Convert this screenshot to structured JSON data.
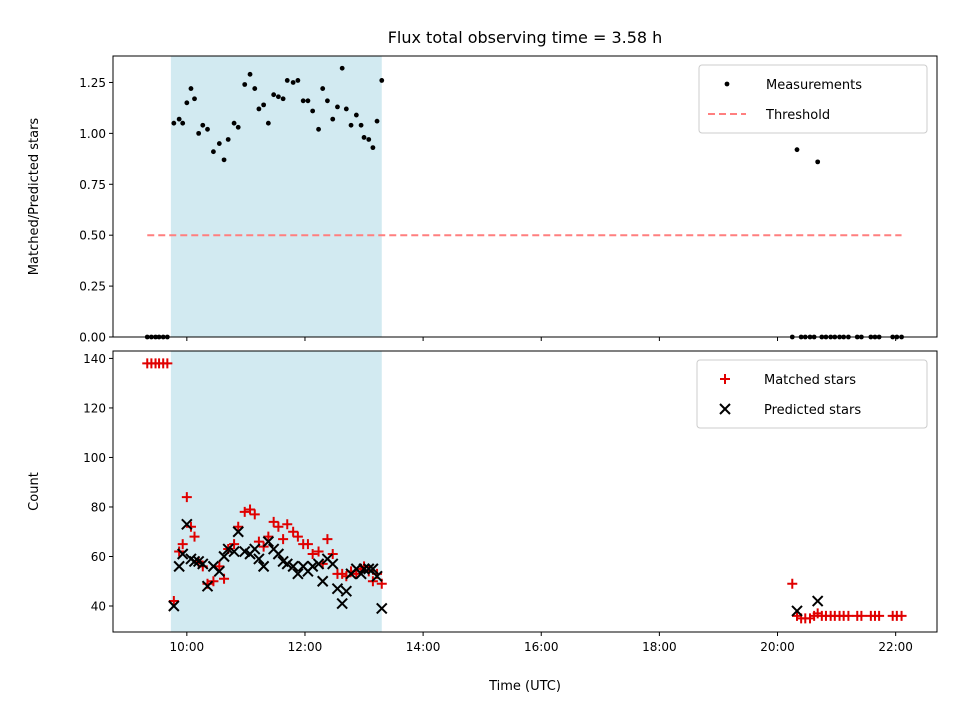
{
  "title": "Flux total observing time = 3.58 h",
  "colors": {
    "measurements": "#000000",
    "threshold": "#ff7f7f",
    "matched": "#e00000",
    "predicted": "#000000",
    "shade": "#add8e6"
  },
  "chart_data": [
    {
      "type": "scatter",
      "ylabel": "Matched/Predicted stars",
      "xlim": [
        8.75,
        22.7
      ],
      "ylim": [
        0,
        1.38
      ],
      "xticks": [
        10,
        12,
        14,
        16,
        18,
        20,
        22
      ],
      "yticks": [
        0.0,
        0.25,
        0.5,
        0.75,
        1.0,
        1.25
      ],
      "ytick_labels": [
        "0.00",
        "0.25",
        "0.50",
        "0.75",
        "1.00",
        "1.25"
      ],
      "shaded_x": [
        9.73,
        13.3
      ],
      "legend": {
        "placement": "top-right",
        "entries": [
          "Measurements",
          "Threshold"
        ]
      },
      "threshold": {
        "name": "Threshold",
        "y": 0.5,
        "x": [
          9.33,
          22.1
        ]
      },
      "series": [
        {
          "name": "Measurements",
          "points": [
            [
              9.33,
              0
            ],
            [
              9.4,
              0
            ],
            [
              9.47,
              0
            ],
            [
              9.53,
              0
            ],
            [
              9.6,
              0
            ],
            [
              9.67,
              0
            ],
            [
              9.78,
              1.05
            ],
            [
              9.87,
              1.07
            ],
            [
              9.93,
              1.05
            ],
            [
              10.0,
              1.15
            ],
            [
              10.07,
              1.22
            ],
            [
              10.13,
              1.17
            ],
            [
              10.2,
              1.0
            ],
            [
              10.27,
              1.04
            ],
            [
              10.35,
              1.02
            ],
            [
              10.45,
              0.91
            ],
            [
              10.55,
              0.95
            ],
            [
              10.63,
              0.87
            ],
            [
              10.7,
              0.97
            ],
            [
              10.8,
              1.05
            ],
            [
              10.87,
              1.03
            ],
            [
              10.98,
              1.24
            ],
            [
              11.07,
              1.29
            ],
            [
              11.15,
              1.22
            ],
            [
              11.22,
              1.12
            ],
            [
              11.3,
              1.14
            ],
            [
              11.38,
              1.05
            ],
            [
              11.47,
              1.19
            ],
            [
              11.55,
              1.18
            ],
            [
              11.63,
              1.17
            ],
            [
              11.7,
              1.26
            ],
            [
              11.8,
              1.25
            ],
            [
              11.88,
              1.26
            ],
            [
              11.97,
              1.16
            ],
            [
              12.05,
              1.16
            ],
            [
              12.13,
              1.11
            ],
            [
              12.23,
              1.02
            ],
            [
              12.3,
              1.22
            ],
            [
              12.38,
              1.16
            ],
            [
              12.47,
              1.07
            ],
            [
              12.55,
              1.13
            ],
            [
              12.63,
              1.32
            ],
            [
              12.7,
              1.12
            ],
            [
              12.78,
              1.04
            ],
            [
              12.87,
              1.09
            ],
            [
              12.95,
              1.04
            ],
            [
              13.0,
              0.98
            ],
            [
              13.08,
              0.97
            ],
            [
              13.15,
              0.93
            ],
            [
              13.22,
              1.06
            ],
            [
              13.3,
              1.26
            ],
            [
              20.25,
              0
            ],
            [
              20.33,
              0.92
            ],
            [
              20.4,
              0
            ],
            [
              20.47,
              0
            ],
            [
              20.55,
              0
            ],
            [
              20.62,
              0
            ],
            [
              20.68,
              0.86
            ],
            [
              20.75,
              0
            ],
            [
              20.82,
              0
            ],
            [
              20.9,
              0
            ],
            [
              20.97,
              0
            ],
            [
              21.05,
              0
            ],
            [
              21.12,
              0
            ],
            [
              21.2,
              0
            ],
            [
              21.35,
              0
            ],
            [
              21.42,
              0
            ],
            [
              21.58,
              0
            ],
            [
              21.65,
              0
            ],
            [
              21.72,
              0
            ],
            [
              21.95,
              0
            ],
            [
              22.02,
              0
            ],
            [
              22.1,
              0
            ]
          ]
        }
      ]
    },
    {
      "type": "scatter",
      "ylabel": "Count",
      "xlabel": "Time (UTC)",
      "xlim": [
        8.75,
        22.7
      ],
      "ylim": [
        29.5,
        143
      ],
      "xticks": [
        10,
        12,
        14,
        16,
        18,
        20,
        22
      ],
      "xtick_labels": [
        "10:00",
        "12:00",
        "14:00",
        "16:00",
        "18:00",
        "20:00",
        "22:00"
      ],
      "yticks": [
        40,
        60,
        80,
        100,
        120,
        140
      ],
      "ytick_labels": [
        "40",
        "60",
        "80",
        "100",
        "120",
        "140"
      ],
      "shaded_x": [
        9.73,
        13.3
      ],
      "legend": {
        "placement": "top-right",
        "entries": [
          "Matched stars",
          "Predicted stars"
        ]
      },
      "series": [
        {
          "name": "Matched stars",
          "marker": "plus",
          "points": [
            [
              9.33,
              138
            ],
            [
              9.4,
              138
            ],
            [
              9.47,
              138
            ],
            [
              9.53,
              138
            ],
            [
              9.6,
              138
            ],
            [
              9.67,
              138
            ],
            [
              9.78,
              42
            ],
            [
              9.87,
              62
            ],
            [
              9.93,
              65
            ],
            [
              10.0,
              84
            ],
            [
              10.07,
              72
            ],
            [
              10.13,
              68
            ],
            [
              10.2,
              58
            ],
            [
              10.27,
              56
            ],
            [
              10.35,
              49
            ],
            [
              10.45,
              50
            ],
            [
              10.55,
              56
            ],
            [
              10.63,
              51
            ],
            [
              10.7,
              63
            ],
            [
              10.8,
              65
            ],
            [
              10.87,
              72
            ],
            [
              10.98,
              78
            ],
            [
              11.07,
              79
            ],
            [
              11.15,
              77
            ],
            [
              11.22,
              66
            ],
            [
              11.3,
              64
            ],
            [
              11.38,
              68
            ],
            [
              11.47,
              74
            ],
            [
              11.55,
              72
            ],
            [
              11.63,
              67
            ],
            [
              11.7,
              73
            ],
            [
              11.8,
              70
            ],
            [
              11.88,
              68
            ],
            [
              11.97,
              65
            ],
            [
              12.05,
              65
            ],
            [
              12.13,
              61
            ],
            [
              12.23,
              62
            ],
            [
              12.3,
              57
            ],
            [
              12.38,
              67
            ],
            [
              12.47,
              61
            ],
            [
              12.55,
              53
            ],
            [
              12.63,
              53
            ],
            [
              12.7,
              52
            ],
            [
              12.78,
              54
            ],
            [
              12.87,
              53
            ],
            [
              12.95,
              55
            ],
            [
              13.0,
              56
            ],
            [
              13.08,
              54
            ],
            [
              13.15,
              50
            ],
            [
              13.22,
              53
            ],
            [
              13.3,
              49
            ],
            [
              20.25,
              49
            ],
            [
              20.33,
              36
            ],
            [
              20.4,
              35
            ],
            [
              20.47,
              35
            ],
            [
              20.55,
              35
            ],
            [
              20.62,
              36
            ],
            [
              20.68,
              37
            ],
            [
              20.75,
              36
            ],
            [
              20.82,
              36
            ],
            [
              20.9,
              36
            ],
            [
              20.97,
              36
            ],
            [
              21.05,
              36
            ],
            [
              21.12,
              36
            ],
            [
              21.2,
              36
            ],
            [
              21.35,
              36
            ],
            [
              21.42,
              36
            ],
            [
              21.58,
              36
            ],
            [
              21.65,
              36
            ],
            [
              21.72,
              36
            ],
            [
              21.95,
              36
            ],
            [
              22.02,
              36
            ],
            [
              22.1,
              36
            ]
          ]
        },
        {
          "name": "Predicted stars",
          "marker": "x",
          "points": [
            [
              9.78,
              40
            ],
            [
              9.87,
              56
            ],
            [
              9.93,
              61
            ],
            [
              10.0,
              73
            ],
            [
              10.07,
              59
            ],
            [
              10.13,
              58
            ],
            [
              10.2,
              58
            ],
            [
              10.27,
              57
            ],
            [
              10.35,
              48
            ],
            [
              10.45,
              56
            ],
            [
              10.55,
              54
            ],
            [
              10.63,
              60
            ],
            [
              10.7,
              63
            ],
            [
              10.8,
              62
            ],
            [
              10.87,
              70
            ],
            [
              10.98,
              62
            ],
            [
              11.07,
              61
            ],
            [
              11.15,
              63
            ],
            [
              11.22,
              59
            ],
            [
              11.3,
              56
            ],
            [
              11.38,
              66
            ],
            [
              11.47,
              63
            ],
            [
              11.55,
              61
            ],
            [
              11.63,
              58
            ],
            [
              11.7,
              57
            ],
            [
              11.8,
              56
            ],
            [
              11.88,
              53
            ],
            [
              11.97,
              56
            ],
            [
              12.05,
              54
            ],
            [
              12.13,
              56
            ],
            [
              12.23,
              57
            ],
            [
              12.3,
              50
            ],
            [
              12.38,
              59
            ],
            [
              12.47,
              57
            ],
            [
              12.55,
              47
            ],
            [
              12.63,
              41
            ],
            [
              12.7,
              46
            ],
            [
              12.78,
              53
            ],
            [
              12.87,
              55
            ],
            [
              12.95,
              53
            ],
            [
              13.0,
              55
            ],
            [
              13.08,
              55
            ],
            [
              13.15,
              55
            ],
            [
              13.22,
              52
            ],
            [
              13.3,
              39
            ],
            [
              20.33,
              38
            ],
            [
              20.68,
              42
            ]
          ]
        }
      ]
    }
  ]
}
